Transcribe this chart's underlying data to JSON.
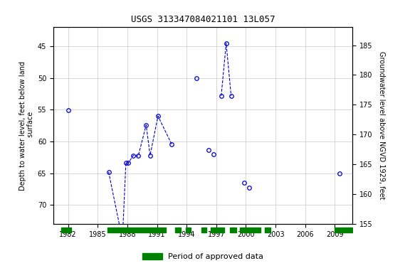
{
  "title": "USGS 313347084021101 13L057",
  "xlabel_ticks": [
    1982,
    1985,
    1988,
    1991,
    1994,
    1997,
    2000,
    2003,
    2006,
    2009
  ],
  "ylim_left": [
    73,
    42
  ],
  "yticks_left": [
    45,
    50,
    55,
    60,
    65,
    70
  ],
  "yticks_right": [
    155,
    160,
    165,
    170,
    175,
    180,
    185
  ],
  "ylabel_left": "Depth to water level, feet below land\n surface",
  "ylabel_right": "Groundwater level above NGVD 1929, feet",
  "xlim": [
    1980.5,
    2010.8
  ],
  "data_points": [
    {
      "year": 1982.0,
      "depth": 55.1
    },
    {
      "year": 1986.1,
      "depth": 64.8
    },
    {
      "year": 1987.25,
      "depth": 73.6
    },
    {
      "year": 1987.55,
      "depth": 73.6
    },
    {
      "year": 1987.85,
      "depth": 63.4
    },
    {
      "year": 1988.1,
      "depth": 63.4
    },
    {
      "year": 1988.6,
      "depth": 62.2
    },
    {
      "year": 1989.1,
      "depth": 62.3
    },
    {
      "year": 1989.9,
      "depth": 57.4
    },
    {
      "year": 1990.3,
      "depth": 62.2
    },
    {
      "year": 1991.1,
      "depth": 56.0
    },
    {
      "year": 1992.5,
      "depth": 60.5
    },
    {
      "year": 1995.0,
      "depth": 50.0
    },
    {
      "year": 1996.2,
      "depth": 61.3
    },
    {
      "year": 1996.7,
      "depth": 62.0
    },
    {
      "year": 1997.5,
      "depth": 52.8
    },
    {
      "year": 1998.0,
      "depth": 44.5
    },
    {
      "year": 1998.5,
      "depth": 52.8
    },
    {
      "year": 1999.8,
      "depth": 66.5
    },
    {
      "year": 2000.3,
      "depth": 67.3
    },
    {
      "year": 2009.5,
      "depth": 65.0
    }
  ],
  "segments": [
    [
      1986.1,
      1987.25,
      1987.55,
      1987.85,
      1988.1,
      1988.6,
      1989.1,
      1989.9,
      1990.3,
      1991.1,
      1992.5
    ],
    [
      1997.5,
      1998.0,
      1998.5
    ]
  ],
  "green_bars": [
    {
      "start": 1981.3,
      "end": 1982.3
    },
    {
      "start": 1986.0,
      "end": 1988.8
    },
    {
      "start": 1988.9,
      "end": 1991.9
    },
    {
      "start": 1992.8,
      "end": 1993.4
    },
    {
      "start": 1993.9,
      "end": 1994.4
    },
    {
      "start": 1995.5,
      "end": 1996.0
    },
    {
      "start": 1996.4,
      "end": 1997.8
    },
    {
      "start": 1998.4,
      "end": 1999.0
    },
    {
      "start": 1999.4,
      "end": 2001.5
    },
    {
      "start": 2001.9,
      "end": 2002.5
    },
    {
      "start": 2009.0,
      "end": 2010.8
    }
  ],
  "marker_color": "#0000cc",
  "line_color": "#0000cc",
  "grid_color": "#c8c8c8",
  "bg_color": "#ffffff",
  "green_bar_color": "#008000"
}
